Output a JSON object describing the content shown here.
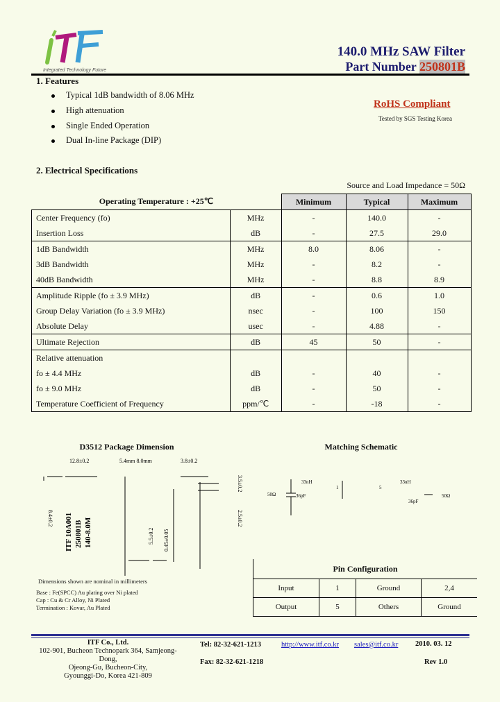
{
  "header": {
    "logo_text": "ITF",
    "logo_tagline": "Integrated Technology Future",
    "title": "140.0 MHz SAW Filter",
    "part_label": "Part Number",
    "part_number": "250801B"
  },
  "features": {
    "heading": "1. Features",
    "items": [
      "Typical 1dB bandwidth of  8.06 MHz",
      "High attenuation",
      "Single Ended Operation",
      "Dual In-line Package (DIP)"
    ]
  },
  "rohs": {
    "label": "RoHS Compliant",
    "tested": "Tested by SGS Testing Korea"
  },
  "electrical": {
    "heading": "2. Electrical Specifications",
    "impedance": "Source and Load Impedance = 50Ω",
    "header": {
      "condition": "Operating Temperature :    +25℃",
      "min": "Minimum",
      "typ": "Typical",
      "max": "Maximum"
    },
    "rows": [
      {
        "param": "Center Frequency (fo)",
        "unit": "MHz",
        "min": "-",
        "typ": "140.0",
        "max": "-"
      },
      {
        "param": "Insertion Loss",
        "unit": "dB",
        "min": "-",
        "typ": "27.5",
        "max": "29.0"
      },
      {
        "param": "1dB Bandwidth",
        "unit": "MHz",
        "min": "8.0",
        "typ": "8.06",
        "max": "-"
      },
      {
        "param": "3dB Bandwidth",
        "unit": "MHz",
        "min": "-",
        "typ": "8.2",
        "max": "-"
      },
      {
        "param": "40dB Bandwidth",
        "unit": "MHz",
        "min": "-",
        "typ": "8.8",
        "max": "8.9"
      },
      {
        "param": "Amplitude Ripple (fo ± 3.9 MHz)",
        "unit": "dB",
        "min": "-",
        "typ": "0.6",
        "max": "1.0"
      },
      {
        "param": "Group Delay Variation (fo ± 3.9 MHz)",
        "unit": "nsec",
        "min": "-",
        "typ": "100",
        "max": "150"
      },
      {
        "param": "Absolute Delay",
        "unit": "usec",
        "min": "-",
        "typ": "4.88",
        "max": "-"
      },
      {
        "param": "Ultimate Rejection",
        "unit": "dB",
        "min": "45",
        "typ": "50",
        "max": "-"
      },
      {
        "param": "Relative attenuation",
        "unit": "",
        "min": "",
        "typ": "",
        "max": ""
      },
      {
        "param": "fo ± 4.4 MHz",
        "unit": "dB",
        "min": "-",
        "typ": "40",
        "max": "-"
      },
      {
        "param": "fo ± 9.0 MHz",
        "unit": "dB",
        "min": "-",
        "typ": "50",
        "max": "-"
      },
      {
        "param": "Temperature Coefficient of Frequency",
        "unit": "ppm/℃",
        "min": "-",
        "typ": "-18",
        "max": "-"
      }
    ]
  },
  "package": {
    "title": "D3512 Package Dimension",
    "dims": [
      "12.8±0.2",
      "5.4mm  8.0mm",
      "3.8±0.2",
      "3.5±0.2",
      "8.4±0.2",
      "0.45±0.05",
      "5.5±0.2",
      "2.5±0.2"
    ],
    "marking": [
      "ITF 10A001",
      "250801B",
      "140-8.0M"
    ],
    "note": "Dimensions shown are nominal in millimeters",
    "materials": [
      "Base : Fe(SPCC) Au plating over Ni plated",
      "Cap : Cu & Cr Alloy, Ni Plated",
      "Termination : Kovar, Au Plated"
    ]
  },
  "schematic": {
    "title": "Matching Schematic",
    "labels": [
      "50Ω",
      "33nH",
      "36pF",
      "1",
      "5",
      "33nH",
      "36pF",
      "50Ω"
    ]
  },
  "pins": {
    "title": "Pin Configuration",
    "rows": [
      [
        "Input",
        "1",
        "Ground",
        "2,4"
      ],
      [
        "Output",
        "5",
        "Others",
        "Ground"
      ]
    ]
  },
  "footer": {
    "company": "ITF   Co., Ltd.",
    "address": [
      "102-901, Bucheon Technopark 364, Samjeong-Dong,",
      "Ojeong-Gu, Bucheon-City,",
      "Gyounggi-Do, Korea 421-809"
    ],
    "tel": "Tel: 82-32-621-1213",
    "fax": "Fax: 82-32-621-1218",
    "web": "http://www.itf.co.kr",
    "email": "sales@itf.co.kr",
    "date": "2010. 03. 12",
    "rev": "Rev 1.0"
  },
  "colors": {
    "navy": "#1c1c6e",
    "red": "#c0321a",
    "footer_blue": "#2e3192",
    "background": "#f8fbea"
  }
}
